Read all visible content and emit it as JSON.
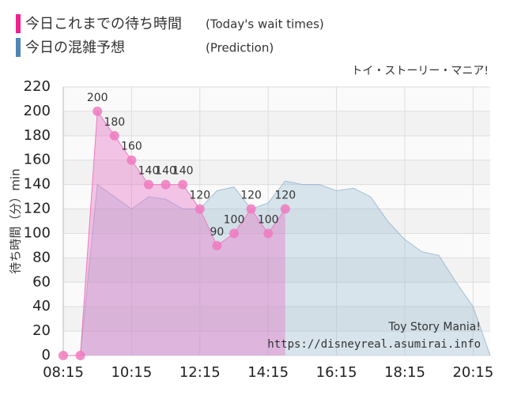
{
  "chart_data": {
    "type": "area-line",
    "title": "トイ・ストーリー・マニア!",
    "annotations": [
      "Toy Story Mania!",
      "https://disneyreal.asumirai.info"
    ],
    "y_label": "待ち時間（分）min",
    "xlim": [
      "08:15",
      "20:45"
    ],
    "xticks": [
      "08:15",
      "10:15",
      "12:15",
      "14:15",
      "16:15",
      "18:15",
      "20:15"
    ],
    "ylim": [
      0,
      220
    ],
    "yticks": [
      0,
      20,
      40,
      60,
      80,
      100,
      120,
      140,
      160,
      180,
      200,
      220
    ],
    "grid": true,
    "series": [
      {
        "name": "今日これまでの待ち時間",
        "legend_note": "(Today's wait times)",
        "color": "#f07ac0",
        "x": [
          "08:15",
          "08:45",
          "09:15",
          "09:45",
          "10:15",
          "10:45",
          "11:15",
          "11:45",
          "12:15",
          "12:45",
          "13:15",
          "13:45",
          "14:15",
          "14:45"
        ],
        "values": [
          0,
          0,
          200,
          180,
          160,
          140,
          140,
          140,
          120,
          90,
          100,
          120,
          100,
          120
        ],
        "value_labels": [
          null,
          null,
          "200",
          "180",
          "160",
          "140",
          "140",
          "140",
          "120",
          "90",
          "100",
          "120",
          "100",
          "120"
        ]
      },
      {
        "name": "今日の混雑予想",
        "legend_note": "(Prediction)",
        "color": "#5a8fb8",
        "x": [
          "08:45",
          "09:15",
          "09:45",
          "10:15",
          "10:45",
          "11:15",
          "11:45",
          "12:15",
          "12:45",
          "13:15",
          "13:45",
          "14:15",
          "14:45",
          "15:15",
          "15:45",
          "16:15",
          "16:45",
          "17:15",
          "17:45",
          "18:15",
          "18:45",
          "19:15",
          "19:45",
          "20:15",
          "20:45"
        ],
        "values": [
          0,
          140,
          130,
          120,
          130,
          128,
          120,
          120,
          135,
          138,
          120,
          125,
          143,
          140,
          140,
          135,
          137,
          130,
          110,
          95,
          85,
          82,
          60,
          40,
          0
        ]
      }
    ]
  }
}
